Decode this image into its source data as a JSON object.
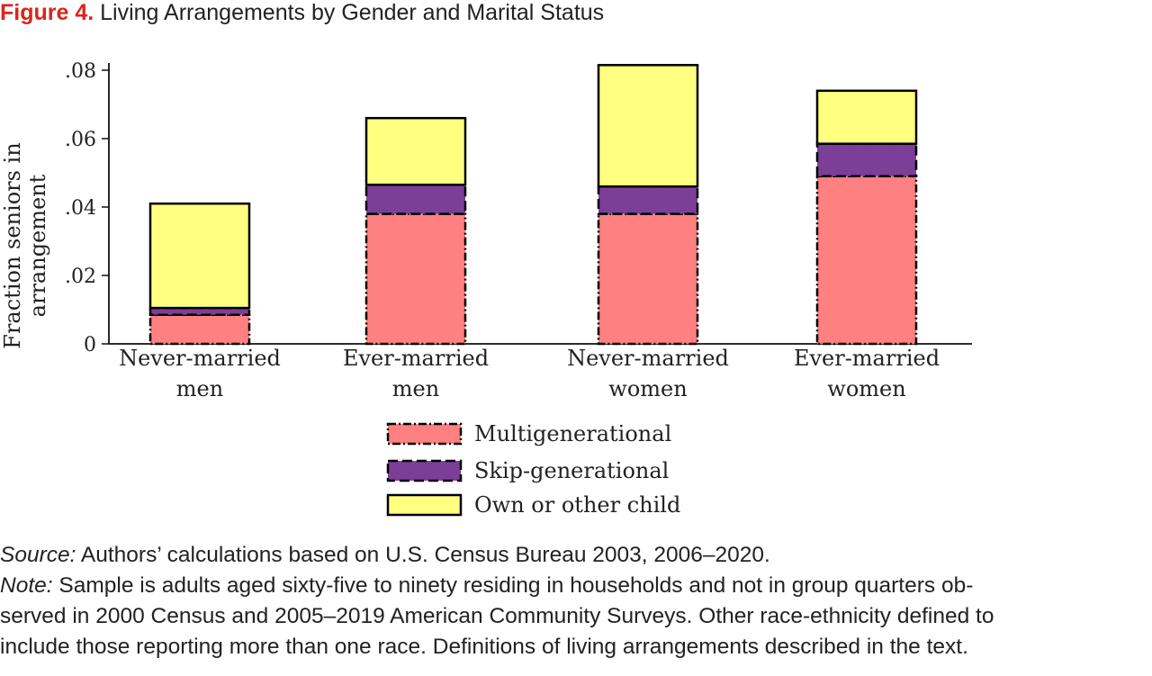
{
  "figure": {
    "label": "Figure 4.",
    "title": "Living Arrangements by Gender and Marital Status"
  },
  "colors": {
    "multigenerational": "#ff8080",
    "skip_generational": "#7b3f98",
    "own_or_other_child": "#ffff80",
    "title_accent": "#d9261c"
  },
  "chart_data": {
    "type": "bar",
    "stacked": true,
    "categories": [
      [
        "Never-married",
        "men"
      ],
      [
        "Ever-married",
        "men"
      ],
      [
        "Never-married",
        "women"
      ],
      [
        "Ever-married",
        "women"
      ]
    ],
    "series": [
      {
        "name": "Multigenerational",
        "values": [
          0.0085,
          0.038,
          0.038,
          0.049
        ],
        "color": "#ff8080",
        "border": "dash-dot"
      },
      {
        "name": "Skip-generational",
        "values": [
          0.002,
          0.0085,
          0.008,
          0.0095
        ],
        "color": "#7b3f98",
        "border": "dashed"
      },
      {
        "name": "Own or other child",
        "values": [
          0.0305,
          0.0195,
          0.0355,
          0.0155
        ],
        "color": "#ffff80",
        "border": "solid"
      }
    ],
    "ylabel": [
      "Fraction seniors in",
      "arrangement"
    ],
    "xlabel": "",
    "ylim": [
      0,
      0.08
    ],
    "yticks": [
      0,
      0.02,
      0.04,
      0.06,
      0.08
    ],
    "ytick_labels": [
      "0",
      ".02",
      ".04",
      ".06",
      ".08"
    ],
    "grid": false,
    "legend_position": "bottom-center"
  },
  "notes": {
    "source_label": "Source:",
    "source_text": " Authors’ calculations based on U.S. Census Bureau 2003, 2006–2020.",
    "note_label": "Note:",
    "note_line1": " Sample is adults aged sixty-five to ninety residing in households and not in group quarters ob-",
    "note_line2": "served in 2000 Census and 2005–2019 American Community Surveys. Other race-ethnicity defined to",
    "note_line3": "include those reporting more than one race. Definitions of living arrangements described in the text."
  }
}
